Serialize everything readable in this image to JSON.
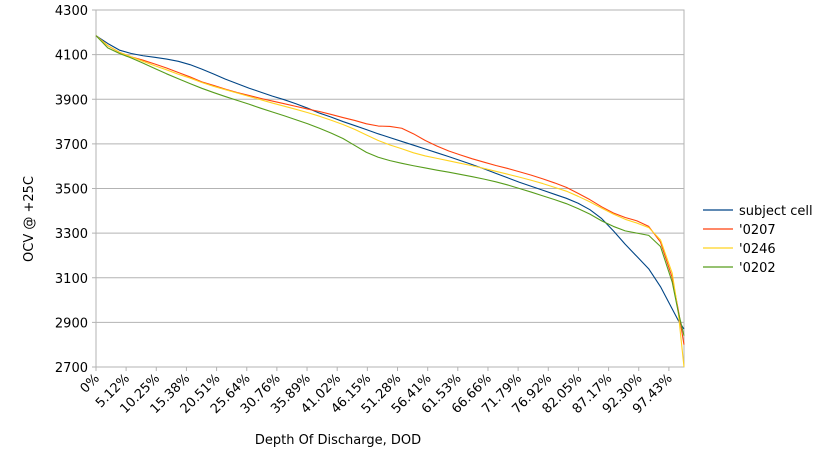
{
  "chart_data": {
    "type": "line",
    "xlabel": "Depth Of Discharge, DOD",
    "ylabel": "OCV @ +25C",
    "ylim": [
      2700,
      4300
    ],
    "yticks": [
      2700,
      2900,
      3100,
      3300,
      3500,
      3700,
      3900,
      4100,
      4300
    ],
    "xlim": [
      0,
      100
    ],
    "xticks": [
      0,
      5.12,
      10.25,
      15.38,
      20.51,
      25.64,
      30.76,
      35.89,
      41.02,
      46.15,
      51.28,
      56.41,
      61.53,
      66.66,
      71.79,
      76.92,
      82.05,
      87.17,
      92.3,
      97.43
    ],
    "xtick_labels": [
      "0%",
      "5.12%",
      "10.25%",
      "15.38%",
      "20.51%",
      "25.64%",
      "30.76%",
      "35.89%",
      "41.02%",
      "46.15%",
      "51.28%",
      "56.41%",
      "61.53%",
      "66.66%",
      "71.79%",
      "76.92%",
      "82.05%",
      "87.17%",
      "92.30%",
      "97.43%"
    ],
    "grid": "horizontal",
    "legend_position": "right",
    "series": [
      {
        "name": "subject cell",
        "color": "#004586",
        "points": [
          [
            0,
            4185
          ],
          [
            2,
            4150
          ],
          [
            4,
            4120
          ],
          [
            6,
            4105
          ],
          [
            8,
            4095
          ],
          [
            10,
            4088
          ],
          [
            12,
            4080
          ],
          [
            14,
            4070
          ],
          [
            16,
            4055
          ],
          [
            18,
            4035
          ],
          [
            20,
            4013
          ],
          [
            22,
            3990
          ],
          [
            24,
            3970
          ],
          [
            26,
            3950
          ],
          [
            28,
            3932
          ],
          [
            30,
            3914
          ],
          [
            32,
            3898
          ],
          [
            34,
            3880
          ],
          [
            36,
            3860
          ],
          [
            38,
            3838
          ],
          [
            40,
            3820
          ],
          [
            42,
            3800
          ],
          [
            44,
            3782
          ],
          [
            46,
            3764
          ],
          [
            48,
            3745
          ],
          [
            50,
            3728
          ],
          [
            52,
            3711
          ],
          [
            54,
            3694
          ],
          [
            56,
            3677
          ],
          [
            58,
            3660
          ],
          [
            60,
            3643
          ],
          [
            62,
            3625
          ],
          [
            64,
            3607
          ],
          [
            66,
            3588
          ],
          [
            68,
            3568
          ],
          [
            70,
            3548
          ],
          [
            72,
            3528
          ],
          [
            74,
            3510
          ],
          [
            76,
            3492
          ],
          [
            78,
            3474
          ],
          [
            80,
            3456
          ],
          [
            82,
            3434
          ],
          [
            84,
            3405
          ],
          [
            86,
            3365
          ],
          [
            88,
            3310
          ],
          [
            90,
            3250
          ],
          [
            92,
            3195
          ],
          [
            94,
            3140
          ],
          [
            96,
            3060
          ],
          [
            98,
            2960
          ],
          [
            99,
            2910
          ],
          [
            100,
            2870
          ]
        ]
      },
      {
        "name": "'0207",
        "color": "#ff420e",
        "points": [
          [
            0,
            4185
          ],
          [
            2,
            4140
          ],
          [
            4,
            4110
          ],
          [
            6,
            4090
          ],
          [
            8,
            4075
          ],
          [
            10,
            4058
          ],
          [
            12,
            4040
          ],
          [
            14,
            4020
          ],
          [
            16,
            4000
          ],
          [
            18,
            3978
          ],
          [
            20,
            3962
          ],
          [
            22,
            3945
          ],
          [
            24,
            3930
          ],
          [
            26,
            3917
          ],
          [
            28,
            3904
          ],
          [
            30,
            3892
          ],
          [
            32,
            3880
          ],
          [
            34,
            3868
          ],
          [
            36,
            3856
          ],
          [
            38,
            3845
          ],
          [
            40,
            3832
          ],
          [
            42,
            3818
          ],
          [
            44,
            3805
          ],
          [
            46,
            3790
          ],
          [
            48,
            3780
          ],
          [
            50,
            3778
          ],
          [
            52,
            3770
          ],
          [
            54,
            3745
          ],
          [
            56,
            3715
          ],
          [
            58,
            3690
          ],
          [
            60,
            3668
          ],
          [
            62,
            3650
          ],
          [
            64,
            3633
          ],
          [
            66,
            3618
          ],
          [
            68,
            3603
          ],
          [
            70,
            3590
          ],
          [
            72,
            3575
          ],
          [
            74,
            3560
          ],
          [
            76,
            3543
          ],
          [
            78,
            3525
          ],
          [
            80,
            3505
          ],
          [
            82,
            3478
          ],
          [
            84,
            3450
          ],
          [
            86,
            3418
          ],
          [
            88,
            3390
          ],
          [
            90,
            3370
          ],
          [
            92,
            3355
          ],
          [
            94,
            3330
          ],
          [
            96,
            3260
          ],
          [
            98,
            3100
          ],
          [
            99,
            2960
          ],
          [
            100,
            2800
          ]
        ]
      },
      {
        "name": "'0246",
        "color": "#ffd320",
        "points": [
          [
            0,
            4185
          ],
          [
            2,
            4140
          ],
          [
            4,
            4110
          ],
          [
            6,
            4090
          ],
          [
            8,
            4070
          ],
          [
            10,
            4050
          ],
          [
            12,
            4032
          ],
          [
            14,
            4012
          ],
          [
            16,
            3995
          ],
          [
            18,
            3975
          ],
          [
            20,
            3958
          ],
          [
            22,
            3943
          ],
          [
            24,
            3928
          ],
          [
            26,
            3913
          ],
          [
            28,
            3898
          ],
          [
            30,
            3883
          ],
          [
            32,
            3869
          ],
          [
            34,
            3855
          ],
          [
            36,
            3840
          ],
          [
            38,
            3824
          ],
          [
            40,
            3806
          ],
          [
            42,
            3787
          ],
          [
            44,
            3765
          ],
          [
            46,
            3740
          ],
          [
            48,
            3715
          ],
          [
            50,
            3695
          ],
          [
            52,
            3678
          ],
          [
            54,
            3660
          ],
          [
            56,
            3646
          ],
          [
            58,
            3635
          ],
          [
            60,
            3624
          ],
          [
            62,
            3613
          ],
          [
            64,
            3602
          ],
          [
            66,
            3590
          ],
          [
            68,
            3577
          ],
          [
            70,
            3564
          ],
          [
            72,
            3551
          ],
          [
            74,
            3537
          ],
          [
            76,
            3522
          ],
          [
            78,
            3505
          ],
          [
            80,
            3488
          ],
          [
            82,
            3465
          ],
          [
            84,
            3440
          ],
          [
            86,
            3412
          ],
          [
            88,
            3385
          ],
          [
            90,
            3362
          ],
          [
            92,
            3345
          ],
          [
            94,
            3325
          ],
          [
            96,
            3270
          ],
          [
            98,
            3120
          ],
          [
            99,
            2950
          ],
          [
            100,
            2700
          ]
        ]
      },
      {
        "name": "'0202",
        "color": "#579d1c",
        "points": [
          [
            0,
            4185
          ],
          [
            2,
            4130
          ],
          [
            4,
            4105
          ],
          [
            6,
            4085
          ],
          [
            8,
            4062
          ],
          [
            10,
            4038
          ],
          [
            12,
            4014
          ],
          [
            14,
            3992
          ],
          [
            16,
            3970
          ],
          [
            18,
            3949
          ],
          [
            20,
            3930
          ],
          [
            22,
            3912
          ],
          [
            24,
            3895
          ],
          [
            26,
            3878
          ],
          [
            28,
            3860
          ],
          [
            30,
            3843
          ],
          [
            32,
            3826
          ],
          [
            34,
            3808
          ],
          [
            36,
            3790
          ],
          [
            38,
            3770
          ],
          [
            40,
            3748
          ],
          [
            42,
            3724
          ],
          [
            44,
            3693
          ],
          [
            46,
            3662
          ],
          [
            48,
            3640
          ],
          [
            50,
            3625
          ],
          [
            52,
            3613
          ],
          [
            54,
            3602
          ],
          [
            56,
            3592
          ],
          [
            58,
            3582
          ],
          [
            60,
            3573
          ],
          [
            62,
            3563
          ],
          [
            64,
            3553
          ],
          [
            66,
            3542
          ],
          [
            68,
            3530
          ],
          [
            70,
            3516
          ],
          [
            72,
            3500
          ],
          [
            74,
            3484
          ],
          [
            76,
            3467
          ],
          [
            78,
            3450
          ],
          [
            80,
            3432
          ],
          [
            82,
            3410
          ],
          [
            84,
            3385
          ],
          [
            86,
            3355
          ],
          [
            88,
            3330
          ],
          [
            90,
            3310
          ],
          [
            92,
            3300
          ],
          [
            94,
            3290
          ],
          [
            96,
            3240
          ],
          [
            98,
            3080
          ],
          [
            99,
            2950
          ],
          [
            100,
            2840
          ]
        ]
      }
    ]
  }
}
